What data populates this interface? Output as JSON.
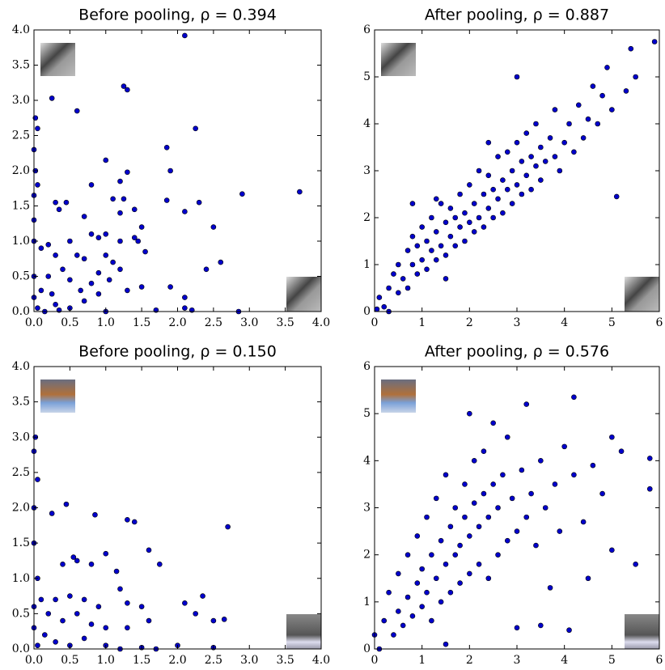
{
  "chart_data": [
    {
      "type": "scatter",
      "title": "Before pooling, ρ = 0.394",
      "color": "#0000cc",
      "xlim": [
        0,
        4
      ],
      "ylim": [
        0,
        4
      ],
      "xticks": [
        {
          "value": 0,
          "label": "0.0"
        },
        {
          "value": 0.5,
          "label": "0.5"
        },
        {
          "value": 1,
          "label": "1.0"
        },
        {
          "value": 1.5,
          "label": "1.5"
        },
        {
          "value": 2,
          "label": "2.0"
        },
        {
          "value": 2.5,
          "label": "2.5"
        },
        {
          "value": 3,
          "label": "3.0"
        },
        {
          "value": 3.5,
          "label": "3.5"
        },
        {
          "value": 4,
          "label": "4.0"
        }
      ],
      "yticks": [
        {
          "value": 0,
          "label": "0.0"
        },
        {
          "value": 0.5,
          "label": "0.5"
        },
        {
          "value": 1,
          "label": "1.0"
        },
        {
          "value": 1.5,
          "label": "1.5"
        },
        {
          "value": 2,
          "label": "2.0"
        },
        {
          "value": 2.5,
          "label": "2.5"
        },
        {
          "value": 3,
          "label": "3.0"
        },
        {
          "value": 3.5,
          "label": "3.5"
        },
        {
          "value": 4,
          "label": "4.0"
        }
      ],
      "x": [
        2.1,
        1.25,
        1.3,
        0.25,
        0.6,
        0.02,
        0.05,
        2.25,
        1.85,
        0.0,
        1.0,
        1.9,
        0.02,
        1.3,
        0.05,
        1.2,
        0.8,
        2.9,
        3.7,
        0.0,
        1.1,
        1.25,
        0.3,
        0.45,
        1.85,
        2.3,
        0.35,
        1.4,
        2.1,
        1.2,
        0.7,
        1.5,
        2.5,
        1.2,
        1.4,
        1.45,
        0.5,
        0.8,
        0.9,
        1.0,
        0.1,
        0.2,
        0.3,
        0.6,
        0.7,
        1.0,
        1.1,
        1.2,
        0.4,
        0.9,
        0.2,
        0.5,
        0.8,
        1.5,
        1.9,
        2.1,
        2.4,
        2.6,
        2.1,
        2.2,
        1.7,
        0.3,
        0.1,
        0.05,
        0.5,
        0.7,
        0.9,
        1.3,
        0.0,
        0.0,
        0.0,
        0.0,
        0.15,
        0.35,
        1.0,
        2.85,
        1.55,
        0.65,
        1.05,
        0.25
      ],
      "values": [
        3.92,
        3.2,
        3.15,
        3.03,
        2.85,
        2.75,
        2.6,
        2.6,
        2.33,
        2.3,
        2.15,
        2.0,
        2.0,
        1.98,
        1.8,
        1.85,
        1.8,
        1.67,
        1.7,
        1.65,
        1.6,
        1.6,
        1.55,
        1.55,
        1.58,
        1.55,
        1.45,
        1.45,
        1.42,
        1.4,
        1.35,
        1.2,
        1.2,
        1.0,
        1.05,
        1.0,
        1.0,
        1.1,
        1.05,
        1.1,
        0.9,
        0.95,
        0.8,
        0.8,
        0.75,
        0.8,
        0.7,
        0.6,
        0.6,
        0.55,
        0.5,
        0.45,
        0.4,
        0.35,
        0.35,
        0.2,
        0.6,
        0.7,
        0.05,
        0.02,
        0.02,
        0.1,
        0.3,
        0.05,
        0.05,
        0.15,
        0.25,
        0.3,
        1.0,
        1.3,
        0.5,
        0.2,
        0.0,
        0.02,
        0.0,
        0.0,
        0.85,
        0.3,
        0.45,
        0.25
      ]
    },
    {
      "type": "scatter",
      "title": "After pooling, ρ = 0.887",
      "color": "#0000cc",
      "xlim": [
        0,
        6
      ],
      "ylim": [
        0,
        6
      ],
      "xticks": [
        0,
        1,
        2,
        3,
        4,
        5,
        6
      ],
      "yticks": [
        0,
        1,
        2,
        3,
        4,
        5,
        6
      ],
      "x": [
        0.05,
        0.1,
        0.2,
        0.3,
        0.4,
        0.5,
        0.5,
        0.6,
        0.7,
        0.7,
        0.8,
        0.8,
        0.9,
        0.9,
        1.0,
        1.0,
        1.1,
        1.1,
        1.2,
        1.2,
        1.3,
        1.3,
        1.4,
        1.4,
        1.5,
        1.5,
        1.6,
        1.6,
        1.7,
        1.7,
        1.8,
        1.8,
        1.9,
        1.9,
        2.0,
        2.0,
        2.1,
        2.1,
        2.2,
        2.2,
        2.3,
        2.3,
        2.4,
        2.4,
        2.5,
        2.5,
        2.6,
        2.6,
        2.7,
        2.7,
        2.8,
        2.8,
        2.9,
        2.9,
        3.0,
        3.0,
        3.1,
        3.1,
        3.2,
        3.2,
        3.3,
        3.3,
        3.4,
        3.4,
        3.5,
        3.5,
        3.6,
        3.7,
        3.8,
        3.8,
        3.9,
        4.0,
        4.1,
        4.2,
        4.3,
        4.4,
        4.5,
        4.6,
        4.7,
        4.8,
        4.9,
        5.0,
        5.1,
        5.3,
        5.4,
        5.5,
        0.3,
        1.5,
        2.4,
        3.0,
        1.3,
        5.9,
        0.8
      ],
      "values": [
        0.05,
        0.3,
        0.1,
        0.5,
        0.8,
        0.4,
        1.0,
        0.7,
        1.3,
        0.5,
        1.0,
        1.6,
        0.8,
        1.4,
        1.1,
        1.8,
        0.9,
        1.5,
        1.3,
        2.0,
        1.1,
        1.7,
        1.4,
        2.3,
        1.2,
        1.9,
        1.6,
        2.2,
        1.4,
        2.0,
        1.8,
        2.5,
        1.5,
        2.1,
        1.9,
        2.7,
        1.7,
        2.3,
        2.0,
        3.0,
        1.8,
        2.5,
        2.2,
        2.9,
        2.0,
        2.6,
        2.4,
        3.3,
        2.1,
        2.8,
        2.6,
        3.4,
        2.3,
        3.0,
        2.7,
        3.6,
        2.5,
        3.2,
        2.9,
        3.8,
        2.6,
        3.3,
        3.1,
        4.0,
        2.8,
        3.5,
        3.2,
        3.7,
        3.3,
        4.3,
        3.0,
        3.6,
        4.0,
        3.4,
        4.4,
        3.7,
        4.1,
        4.8,
        4.0,
        4.6,
        5.2,
        4.3,
        2.45,
        4.7,
        5.6,
        5.0,
        0.0,
        0.7,
        3.6,
        5.0,
        2.4,
        5.75,
        2.3
      ]
    },
    {
      "type": "scatter",
      "title": "Before pooling, ρ = 0.150",
      "color": "#0000cc",
      "xlim": [
        0,
        4
      ],
      "ylim": [
        0,
        4
      ],
      "xticks": [
        {
          "value": 0,
          "label": "0.0"
        },
        {
          "value": 0.5,
          "label": "0.5"
        },
        {
          "value": 1,
          "label": "1.0"
        },
        {
          "value": 1.5,
          "label": "1.5"
        },
        {
          "value": 2,
          "label": "2.0"
        },
        {
          "value": 2.5,
          "label": "2.5"
        },
        {
          "value": 3,
          "label": "3.0"
        },
        {
          "value": 3.5,
          "label": "3.5"
        },
        {
          "value": 4,
          "label": "4.0"
        }
      ],
      "yticks": [
        {
          "value": 0,
          "label": "0.0"
        },
        {
          "value": 0.5,
          "label": "0.5"
        },
        {
          "value": 1,
          "label": "1.0"
        },
        {
          "value": 1.5,
          "label": "1.5"
        },
        {
          "value": 2,
          "label": "2.0"
        },
        {
          "value": 2.5,
          "label": "2.5"
        },
        {
          "value": 3,
          "label": "3.0"
        },
        {
          "value": 3.5,
          "label": "3.5"
        },
        {
          "value": 4,
          "label": "4.0"
        }
      ],
      "x": [
        0.02,
        0.0,
        0.05,
        0.0,
        0.25,
        0.45,
        0.85,
        1.3,
        1.4,
        2.7,
        0.0,
        0.55,
        0.6,
        1.0,
        1.6,
        0.4,
        0.8,
        1.15,
        1.75,
        0.05,
        0.1,
        0.3,
        0.5,
        0.7,
        0.9,
        1.2,
        1.3,
        1.5,
        2.1,
        2.35,
        2.25,
        0.2,
        0.4,
        0.6,
        0.8,
        1.0,
        1.3,
        1.6,
        2.5,
        2.65,
        0.15,
        0.3,
        0.5,
        0.7,
        1.0,
        1.5,
        2.0,
        2.5,
        0.0,
        0.0,
        0.05,
        1.2,
        1.7
      ],
      "values": [
        3.0,
        2.8,
        2.4,
        2.0,
        1.92,
        2.05,
        1.9,
        1.83,
        1.8,
        1.73,
        1.5,
        1.3,
        1.25,
        1.35,
        1.4,
        1.2,
        1.2,
        1.1,
        1.2,
        1.0,
        0.7,
        0.7,
        0.75,
        0.7,
        0.6,
        0.85,
        0.65,
        0.6,
        0.65,
        0.75,
        0.5,
        0.5,
        0.4,
        0.5,
        0.35,
        0.3,
        0.3,
        0.4,
        0.4,
        0.42,
        0.2,
        0.1,
        0.05,
        0.15,
        0.05,
        0.02,
        0.05,
        0.02,
        0.3,
        0.6,
        0.05,
        0.0,
        0.0
      ]
    },
    {
      "type": "scatter",
      "title": "After pooling, ρ = 0.576",
      "color": "#0000cc",
      "xlim": [
        0,
        6
      ],
      "ylim": [
        0,
        6
      ],
      "xticks": [
        0,
        1,
        2,
        3,
        4,
        5,
        6
      ],
      "yticks": [
        0,
        1,
        2,
        3,
        4,
        5,
        6
      ],
      "x": [
        0.1,
        0.2,
        0.3,
        0.4,
        0.5,
        0.5,
        0.6,
        0.7,
        0.7,
        0.8,
        0.9,
        0.9,
        1.0,
        1.0,
        1.1,
        1.1,
        1.2,
        1.2,
        1.3,
        1.3,
        1.4,
        1.4,
        1.5,
        1.5,
        1.6,
        1.6,
        1.7,
        1.7,
        1.8,
        1.8,
        1.9,
        1.9,
        2.0,
        2.0,
        2.1,
        2.1,
        2.2,
        2.2,
        2.3,
        2.3,
        2.4,
        2.4,
        2.5,
        2.5,
        2.6,
        2.6,
        2.7,
        2.8,
        2.8,
        2.9,
        3.0,
        3.0,
        3.1,
        3.2,
        3.2,
        3.3,
        3.4,
        3.5,
        3.6,
        3.7,
        3.8,
        3.9,
        4.0,
        4.1,
        4.2,
        4.2,
        4.4,
        4.5,
        4.6,
        4.8,
        5.0,
        5.0,
        5.2,
        5.5,
        5.8,
        5.8,
        3.5,
        2.0,
        0.0,
        1.5
      ],
      "values": [
        0.0,
        0.6,
        1.2,
        0.3,
        0.8,
        1.6,
        0.5,
        1.1,
        2.0,
        0.7,
        1.4,
        2.4,
        0.9,
        1.7,
        1.2,
        2.8,
        0.6,
        2.0,
        1.5,
        3.2,
        1.0,
        2.3,
        1.8,
        3.7,
        1.2,
        2.6,
        2.0,
        3.0,
        1.4,
        2.2,
        2.8,
        3.5,
        1.6,
        2.4,
        3.1,
        4.0,
        1.8,
        2.6,
        3.3,
        4.2,
        1.5,
        2.8,
        3.5,
        4.8,
        2.0,
        3.0,
        3.7,
        2.3,
        4.5,
        3.2,
        2.5,
        0.45,
        3.8,
        2.8,
        5.2,
        3.3,
        2.2,
        4.0,
        3.0,
        1.3,
        3.5,
        2.5,
        4.3,
        0.4,
        3.7,
        5.35,
        2.7,
        1.5,
        3.9,
        3.3,
        2.1,
        4.5,
        4.2,
        1.8,
        4.05,
        3.4,
        0.5,
        5.0,
        0.3,
        0.1
      ]
    }
  ]
}
